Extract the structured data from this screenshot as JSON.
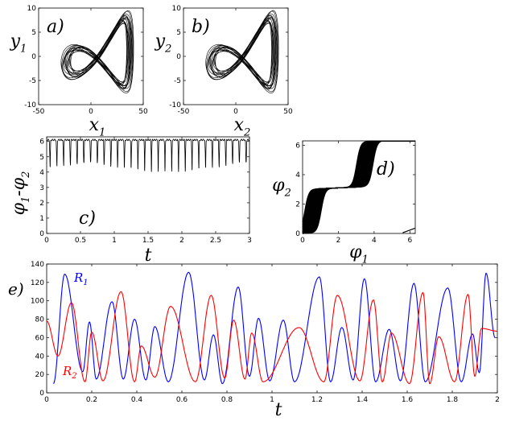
{
  "chart_data": [
    {
      "id": "a",
      "type": "line",
      "panel_label": "a)",
      "xlabel": "x",
      "xlabel_sub": "1",
      "ylabel": "y",
      "ylabel_sub": "1",
      "xlim": [
        -50,
        50
      ],
      "ylim": [
        -10,
        10
      ],
      "xticks": [
        "-50",
        "0",
        "50"
      ],
      "yticks": [
        "10",
        "5",
        "0",
        "-5",
        "-10"
      ],
      "series": [
        {
          "color": "#000000"
        }
      ]
    },
    {
      "id": "b",
      "type": "line",
      "panel_label": "b)",
      "xlabel": "x",
      "xlabel_sub": "2",
      "ylabel": "y",
      "ylabel_sub": "2",
      "xlim": [
        -50,
        50
      ],
      "ylim": [
        -10,
        10
      ],
      "xticks": [
        "-50",
        "0",
        "50"
      ],
      "yticks": [
        "10",
        "5",
        "0",
        "-5",
        "-10"
      ],
      "series": [
        {
          "color": "#000000"
        }
      ]
    },
    {
      "id": "c",
      "type": "line",
      "panel_label": "c)",
      "xlabel": "t",
      "ylabel": "φ",
      "ylabel_parts": [
        "φ",
        "1",
        "-φ",
        "2"
      ],
      "xlim": [
        0,
        3
      ],
      "ylim": [
        0,
        6.3
      ],
      "xticks": [
        "0",
        "0.5",
        "1",
        "1.5",
        "2",
        "2.5",
        "3"
      ],
      "yticks": [
        "6",
        "5",
        "4",
        "3",
        "2",
        "1",
        "0"
      ],
      "description_values": {
        "high": 6.1,
        "dip_low": 4.0,
        "dips_count": 30
      },
      "series": [
        {
          "color": "#000000"
        }
      ]
    },
    {
      "id": "d",
      "type": "line",
      "panel_label": "d)",
      "xlabel": "φ",
      "xlabel_sub": "1",
      "ylabel": "φ",
      "ylabel_sub": "2",
      "xlim": [
        0,
        6.3
      ],
      "ylim": [
        0,
        6.3
      ],
      "xticks": [
        "0",
        "2",
        "4",
        "6"
      ],
      "yticks": [
        "6",
        "4",
        "2",
        "0"
      ],
      "series": [
        {
          "color": "#000000"
        }
      ]
    },
    {
      "id": "e",
      "type": "line",
      "panel_label": "e)",
      "xlabel": "t",
      "xlim": [
        0,
        2
      ],
      "ylim": [
        0,
        140
      ],
      "xticks": [
        "0",
        "0.2",
        "0.4",
        "0.6",
        "0.8",
        "1",
        "1.2",
        "1.4",
        "1.6",
        "1.8",
        "2"
      ],
      "yticks": [
        "140",
        "120",
        "100",
        "80",
        "60",
        "40",
        "20",
        "0"
      ],
      "series": [
        {
          "name": "R",
          "name_sub": "1",
          "color": "#0000ff",
          "peaks": [
            [
              0.08,
              129
            ],
            [
              0.19,
              77
            ],
            [
              0.29,
              99
            ],
            [
              0.39,
              80
            ],
            [
              0.48,
              72
            ],
            [
              0.63,
              131
            ],
            [
              0.74,
              63
            ],
            [
              0.85,
              115
            ],
            [
              0.94,
              81
            ],
            [
              1.05,
              79
            ],
            [
              1.21,
              126
            ],
            [
              1.31,
              71
            ],
            [
              1.41,
              124
            ],
            [
              1.52,
              69
            ],
            [
              1.63,
              119
            ],
            [
              1.78,
              114
            ],
            [
              1.89,
              64
            ],
            [
              1.95,
              130
            ]
          ],
          "troughs": [
            [
              0.03,
              10
            ],
            [
              0.16,
              23
            ],
            [
              0.22,
              15
            ],
            [
              0.34,
              15
            ],
            [
              0.44,
              14
            ],
            [
              0.54,
              12
            ],
            [
              0.7,
              14
            ],
            [
              0.78,
              10
            ],
            [
              0.9,
              18
            ],
            [
              0.99,
              13
            ],
            [
              1.1,
              12
            ],
            [
              1.26,
              12
            ],
            [
              1.36,
              14
            ],
            [
              1.46,
              12
            ],
            [
              1.57,
              13
            ],
            [
              1.68,
              12
            ],
            [
              1.84,
              12
            ],
            [
              1.92,
              22
            ],
            [
              1.99,
              60
            ]
          ]
        },
        {
          "name": "R",
          "name_sub": "2",
          "color": "#ff0000",
          "peaks": [
            [
              0.0,
              78
            ],
            [
              0.11,
              98
            ],
            [
              0.2,
              66
            ],
            [
              0.33,
              110
            ],
            [
              0.42,
              51
            ],
            [
              0.55,
              94
            ],
            [
              0.73,
              106
            ],
            [
              0.83,
              79
            ],
            [
              0.91,
              65
            ],
            [
              1.12,
              71
            ],
            [
              1.29,
              106
            ],
            [
              1.45,
              101
            ],
            [
              1.53,
              65
            ],
            [
              1.67,
              109
            ],
            [
              1.74,
              61
            ],
            [
              1.87,
              107
            ],
            [
              1.93,
              70
            ]
          ],
          "troughs": [
            [
              0.05,
              40
            ],
            [
              0.17,
              12
            ],
            [
              0.25,
              13
            ],
            [
              0.39,
              12
            ],
            [
              0.48,
              17
            ],
            [
              0.66,
              12
            ],
            [
              0.79,
              16
            ],
            [
              0.88,
              15
            ],
            [
              0.96,
              12
            ],
            [
              1.23,
              12
            ],
            [
              1.39,
              13
            ],
            [
              1.49,
              12
            ],
            [
              1.61,
              10
            ],
            [
              1.7,
              10
            ],
            [
              1.81,
              12
            ],
            [
              1.9,
              18
            ],
            [
              2.0,
              67
            ]
          ]
        }
      ]
    }
  ]
}
